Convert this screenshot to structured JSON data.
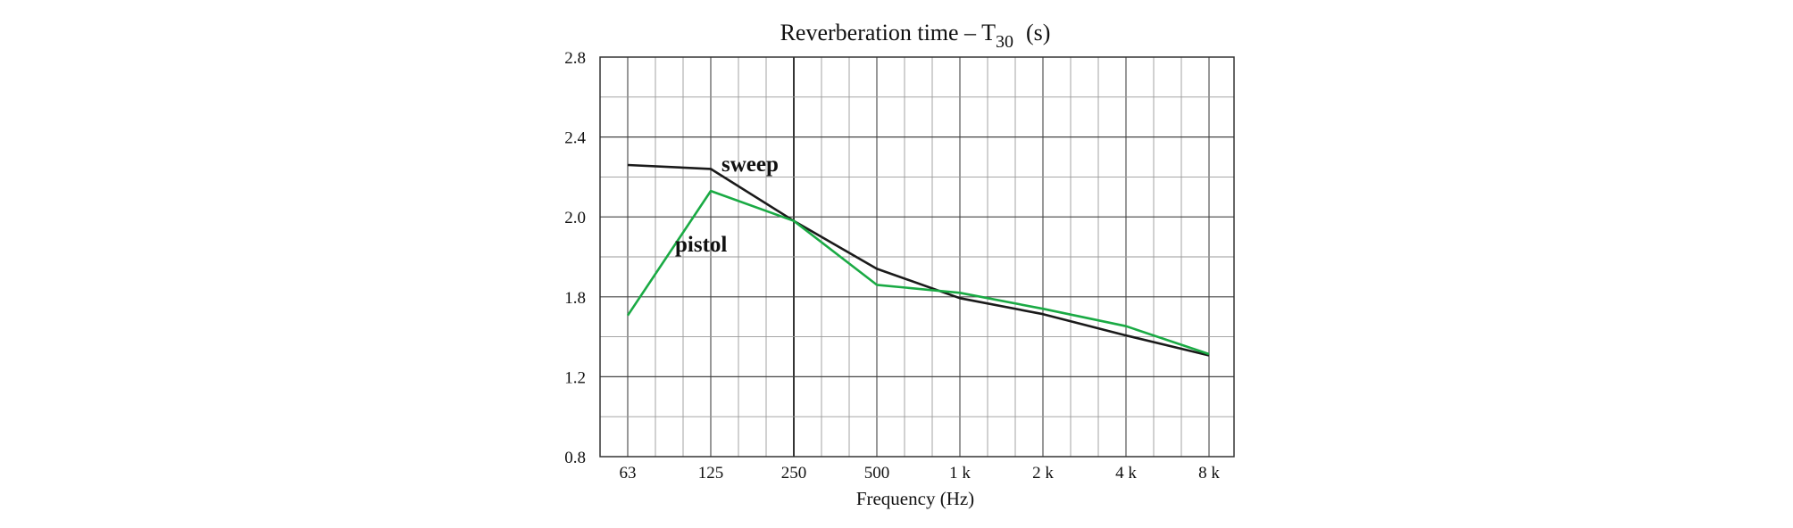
{
  "chart_data": {
    "type": "line",
    "title": "Reverberation time – T",
    "title_subscript": "30",
    "title_suffix": "(s)",
    "xlabel": "Frequency (Hz)",
    "ylabel": "",
    "categories": [
      "63",
      "125",
      "250",
      "500",
      "1 k",
      "2 k",
      "4 k",
      "8 k"
    ],
    "yticks": [
      "2.8",
      "2.4",
      "2.0",
      "1.8",
      "1.2",
      "0.8"
    ],
    "ylim": [
      0.8,
      2.8
    ],
    "grid": true,
    "series": [
      {
        "name": "sweep",
        "color": "#1a1a1a",
        "values": [
          2.26,
          2.24,
          1.99,
          1.87,
          1.79,
          1.67,
          1.51,
          1.36
        ]
      },
      {
        "name": "pistol",
        "color": "#1aaa44",
        "values": [
          1.66,
          2.13,
          1.99,
          1.83,
          1.81,
          1.71,
          1.58,
          1.37
        ]
      }
    ]
  }
}
